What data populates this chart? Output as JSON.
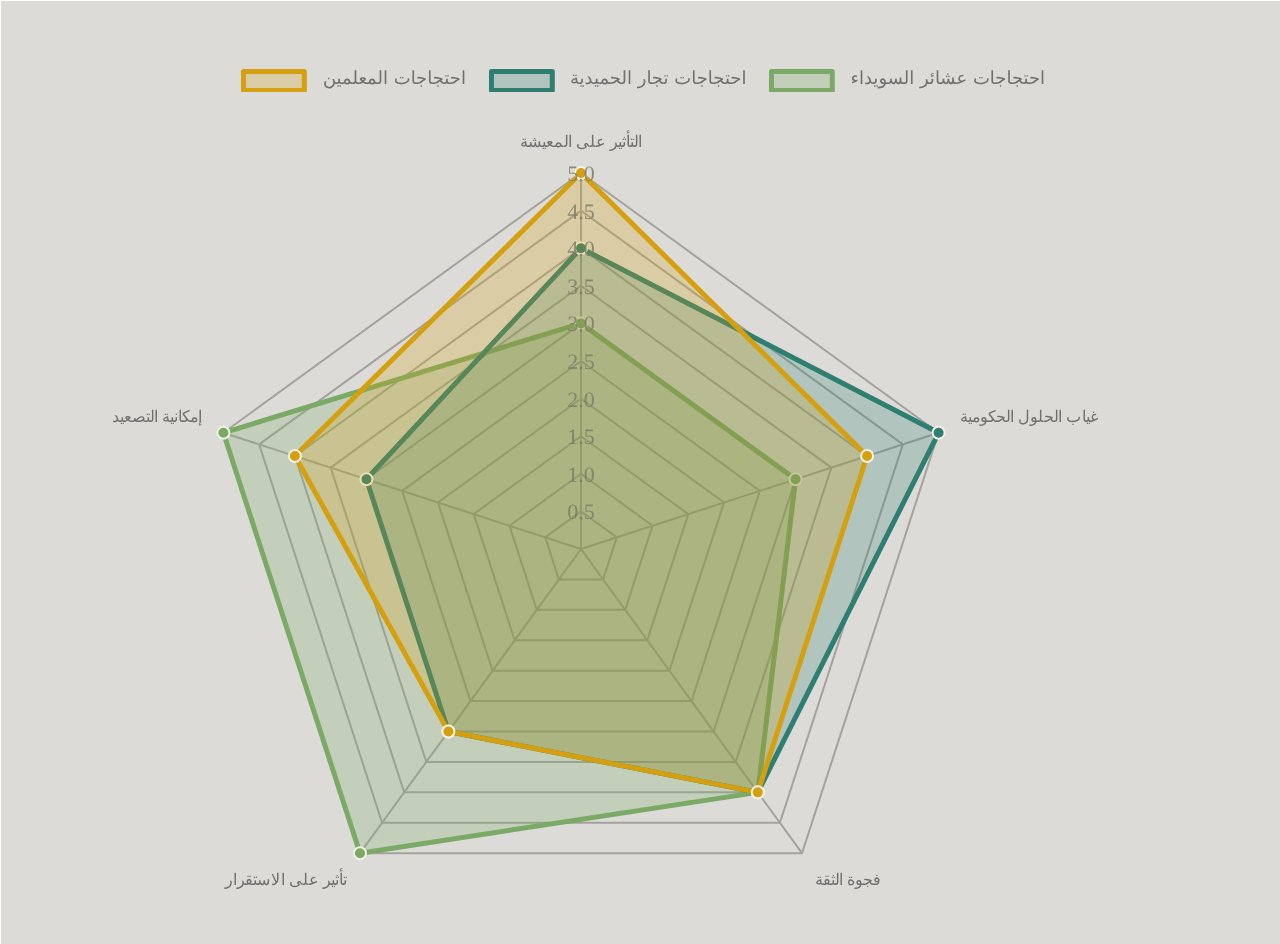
{
  "chart_data": {
    "type": "radar",
    "categories": [
      "التأثير على المعيشة",
      "غياب الحلول الحكومية",
      "فجوة الثقة",
      "تأثير على الاستقرار",
      "إمكانية التصعيد"
    ],
    "series": [
      {
        "name": "احتجاجات المعلمين",
        "color": "#d4a00f",
        "values": [
          5,
          4,
          4,
          3,
          4
        ]
      },
      {
        "name": "احتجاجات تجار الحميدية",
        "color": "#2e7f72",
        "values": [
          4,
          5,
          4,
          3,
          3
        ]
      },
      {
        "name": "احتجاجات عشائر السويداء",
        "color": "#7aaa66",
        "values": [
          3,
          3,
          4,
          5,
          5
        ]
      }
    ],
    "ylim": [
      0,
      5
    ],
    "yticks": [
      0.5,
      {
        "value": 1,
        "label": "1.0"
      },
      1.5,
      {
        "value": 2,
        "label": "2.0"
      },
      2.5,
      {
        "value": 3,
        "label": "3.0"
      },
      3.5,
      {
        "value": 4,
        "label": "4.0"
      },
      4.5,
      {
        "value": 5,
        "label": "5.0"
      }
    ],
    "grid": true,
    "legend": "top",
    "marker": "circle"
  }
}
